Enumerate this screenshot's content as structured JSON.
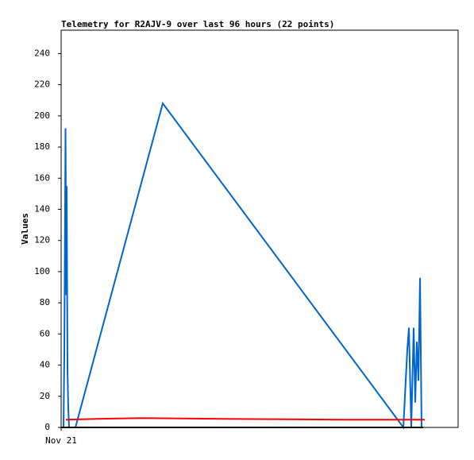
{
  "chart_data": {
    "type": "line",
    "title": "Telemetry for R2AJV-9 over last 96 hours (22 points)",
    "y_label": "Values",
    "xlim": [
      0,
      96
    ],
    "xticks": [
      {
        "value": 0,
        "label": "Nov 21"
      }
    ],
    "ylim": [
      0,
      255
    ],
    "yticks": [
      0,
      20,
      40,
      60,
      80,
      100,
      120,
      140,
      160,
      180,
      200,
      220,
      240
    ],
    "series": [
      {
        "color": "#0066cc",
        "x": [
          0.58,
          0.77,
          1.06,
          1.25,
          1.34,
          1.54,
          1.73,
          1.92,
          3.46,
          24.58,
          82.76,
          83.14,
          83.52,
          83.71,
          84.1,
          84.67,
          85.25,
          85.63,
          86.02,
          86.4,
          86.79,
          87.17
        ],
        "values": [
          0,
          48,
          192,
          85,
          155,
          37,
          12,
          0,
          0,
          208,
          0,
          20,
          40,
          50,
          64,
          0,
          64,
          16,
          55,
          30,
          96,
          0
        ]
      },
      {
        "color": "#ff0000",
        "x": [
          1.15,
          8.64,
          19.78,
          39.36,
          68.36,
          87.94
        ],
        "values": [
          5,
          5.5,
          6,
          5.5,
          5,
          5
        ]
      },
      {
        "color": "#000000",
        "x": [
          0,
          87.56
        ],
        "values": [
          0,
          0
        ]
      }
    ]
  }
}
